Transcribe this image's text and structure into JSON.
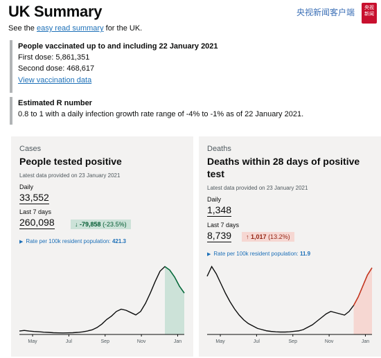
{
  "header": {
    "title": "UK Summary",
    "watermark": "央视新闻客户端",
    "logo_line1": "央视",
    "logo_line2": "新闻"
  },
  "intro": {
    "prefix": "See the ",
    "link": "easy read summary",
    "suffix": " for the UK."
  },
  "vaccination": {
    "heading": "People vaccinated up to and including 22 January 2021",
    "first_dose": "First dose: 5,861,351",
    "second_dose": "Second dose: 468,617",
    "link": "View vaccination data"
  },
  "r_number": {
    "heading": "Estimated R number",
    "text": "0.8 to 1 with a daily infection growth rate range of -4% to -1% as of 22 January 2021."
  },
  "cases": {
    "category": "Cases",
    "title": "People tested positive",
    "meta": "Latest data provided on 23 January 2021",
    "daily_label": "Daily",
    "daily_value": "33,552",
    "week_label": "Last 7 days",
    "week_value": "260,098",
    "change_arrow": "↓",
    "change_value": "-79,858",
    "change_pct": "(-23.5%)",
    "rate_label": "Rate per 100k resident population:",
    "rate_value": "421.3",
    "ticks": [
      "May",
      "Jul",
      "Sep",
      "Nov",
      "Jan"
    ],
    "trend_values": [
      3,
      3.5,
      3,
      2.6,
      2.4,
      2,
      1.8,
      1.5,
      1.4,
      1.3,
      1.4,
      1.5,
      1.8,
      2.2,
      3,
      4,
      6,
      9,
      13,
      16,
      20,
      22,
      21,
      19,
      17,
      20,
      27,
      36,
      46,
      55,
      59,
      56,
      50,
      42,
      36
    ],
    "highlight_from": 30,
    "colors": {
      "highlight": "#cce2d8",
      "highlight_stroke": "#00703c"
    }
  },
  "deaths": {
    "category": "Deaths",
    "title": "Deaths within 28 days of positive test",
    "meta": "Latest data provided on 23 January 2021",
    "daily_label": "Daily",
    "daily_value": "1,348",
    "week_label": "Last 7 days",
    "week_value": "8,739",
    "change_arrow": "↑",
    "change_value": "1,017",
    "change_pct": "(13.2%)",
    "rate_label": "Rate per 100k resident population:",
    "rate_value": "11.9",
    "ticks": [
      "May",
      "Jul",
      "Sep",
      "Nov",
      "Jan"
    ],
    "trend_values": [
      48,
      56,
      50,
      42,
      34,
      27,
      21,
      16,
      12,
      9,
      7,
      5,
      4,
      3,
      2.5,
      2.2,
      2,
      2,
      2.2,
      2.6,
      3,
      4,
      6,
      8,
      11,
      14,
      17,
      19,
      18,
      17,
      16,
      19,
      24,
      31,
      40,
      49,
      55
    ],
    "highlight_from": 32,
    "colors": {
      "highlight": "#f6d7d2",
      "highlight_stroke": "#d4351c"
    }
  }
}
